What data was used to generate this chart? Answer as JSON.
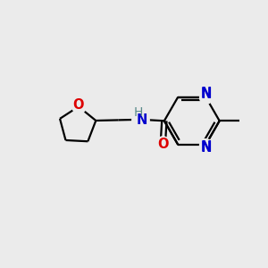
{
  "bg_color": "#ebebeb",
  "bond_color": "#000000",
  "N_color": "#0000cd",
  "O_color": "#dd0000",
  "line_width": 1.6,
  "font_size": 10.5,
  "fig_size": [
    3.0,
    3.0
  ],
  "dpi": 100,
  "xlim": [
    0,
    10
  ],
  "ylim": [
    0,
    10
  ]
}
